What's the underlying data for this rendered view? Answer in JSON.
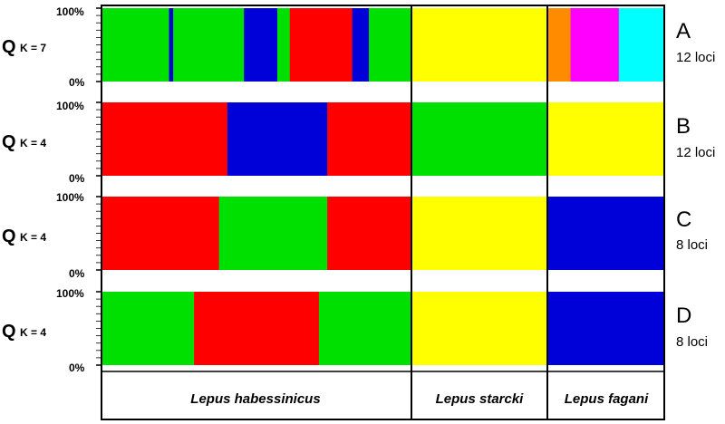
{
  "chart_data": [
    {
      "type": "bar",
      "stacked": true,
      "row_id": "A",
      "loci_label": "12 loci",
      "q_label": "Q",
      "k_label": "K = 7",
      "ylim": [
        0,
        100
      ],
      "ytick_labels": [
        "100%",
        "0%"
      ],
      "groups": [
        {
          "name": "Lepus habessinicus",
          "segments": [
            {
              "n": 16,
              "cluster": "green"
            },
            {
              "n": 1,
              "cluster": "blue"
            },
            {
              "n": 17,
              "cluster": "green"
            },
            {
              "n": 8,
              "cluster": "blue"
            },
            {
              "n": 3,
              "cluster": "green"
            },
            {
              "n": 15,
              "cluster": "red"
            },
            {
              "n": 4,
              "cluster": "blue"
            },
            {
              "n": 10,
              "cluster": "green"
            }
          ]
        },
        {
          "name": "Lepus starcki",
          "segments": [
            {
              "n": 40,
              "cluster": "yellow"
            }
          ]
        },
        {
          "name": "Lepus fagani",
          "segments": [
            {
              "n": 6,
              "cluster": "orange"
            },
            {
              "n": 13,
              "cluster": "magenta"
            },
            {
              "n": 12,
              "cluster": "cyan"
            }
          ]
        }
      ]
    },
    {
      "type": "bar",
      "stacked": true,
      "row_id": "B",
      "loci_label": "12 loci",
      "q_label": "Q",
      "k_label": "K = 4",
      "ylim": [
        0,
        100
      ],
      "ytick_labels": [
        "100%",
        "0%"
      ],
      "groups": [
        {
          "name": "Lepus habessinicus",
          "segments": [
            {
              "n": 30,
              "cluster": "red"
            },
            {
              "n": 10,
              "cluster": "blue"
            },
            {
              "n": 14,
              "cluster": "blue"
            },
            {
              "n": 20,
              "cluster": "red"
            }
          ]
        },
        {
          "name": "Lepus starcki",
          "segments": [
            {
              "n": 40,
              "cluster": "green"
            }
          ]
        },
        {
          "name": "Lepus fagani",
          "segments": [
            {
              "n": 31,
              "cluster": "yellow"
            }
          ]
        }
      ]
    },
    {
      "type": "bar",
      "stacked": true,
      "row_id": "C",
      "loci_label": "8 loci",
      "q_label": "Q",
      "k_label": "K = 4",
      "ylim": [
        0,
        100
      ],
      "ytick_labels": [
        "100%",
        "0%"
      ],
      "groups": [
        {
          "name": "Lepus habessinicus",
          "segments": [
            {
              "n": 28,
              "cluster": "red"
            },
            {
              "n": 14,
              "cluster": "green"
            },
            {
              "n": 12,
              "cluster": "green"
            },
            {
              "n": 20,
              "cluster": "red"
            }
          ]
        },
        {
          "name": "Lepus starcki",
          "segments": [
            {
              "n": 40,
              "cluster": "yellow"
            }
          ]
        },
        {
          "name": "Lepus fagani",
          "segments": [
            {
              "n": 31,
              "cluster": "blue"
            }
          ]
        }
      ]
    },
    {
      "type": "bar",
      "stacked": true,
      "row_id": "D",
      "loci_label": "8 loci",
      "q_label": "Q",
      "k_label": "K = 4",
      "ylim": [
        0,
        100
      ],
      "ytick_labels": [
        "100%",
        "0%"
      ],
      "groups": [
        {
          "name": "Lepus habessinicus",
          "segments": [
            {
              "n": 22,
              "cluster": "green"
            },
            {
              "n": 30,
              "cluster": "red"
            },
            {
              "n": 22,
              "cluster": "green"
            }
          ]
        },
        {
          "name": "Lepus starcki",
          "segments": [
            {
              "n": 40,
              "cluster": "yellow"
            }
          ]
        },
        {
          "name": "Lepus fagani",
          "segments": [
            {
              "n": 31,
              "cluster": "blue"
            }
          ]
        }
      ]
    }
  ],
  "species_labels": [
    "Lepus habessinicus",
    "Lepus starcki",
    "Lepus fagani"
  ],
  "cluster_colors": {
    "red": "#ff0000",
    "green": "#00e000",
    "blue": "#0000d8",
    "yellow": "#ffff00",
    "orange": "#ff8c00",
    "magenta": "#ff00ff",
    "cyan": "#00ffff",
    "pale-yellow": "#ffff80"
  }
}
